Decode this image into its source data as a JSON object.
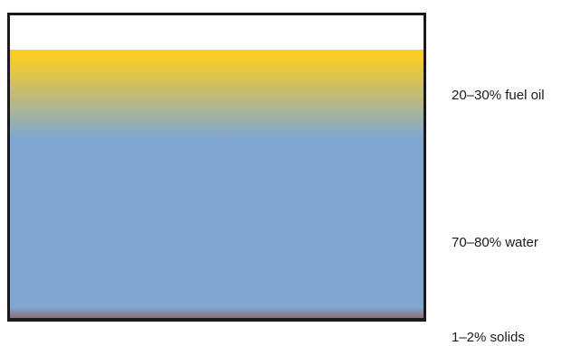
{
  "layers": [
    {
      "key": "oil",
      "label": "20–30% fuel oil",
      "color": "#f9cd25"
    },
    {
      "key": "water",
      "label": "70–80% water",
      "color": "#80a7d2"
    },
    {
      "key": "solids",
      "label": "1–2% solids",
      "color": "#8b6f74"
    }
  ],
  "container": {
    "outline_color": "#1a1a1a",
    "headspace_color": "#ffffff"
  }
}
